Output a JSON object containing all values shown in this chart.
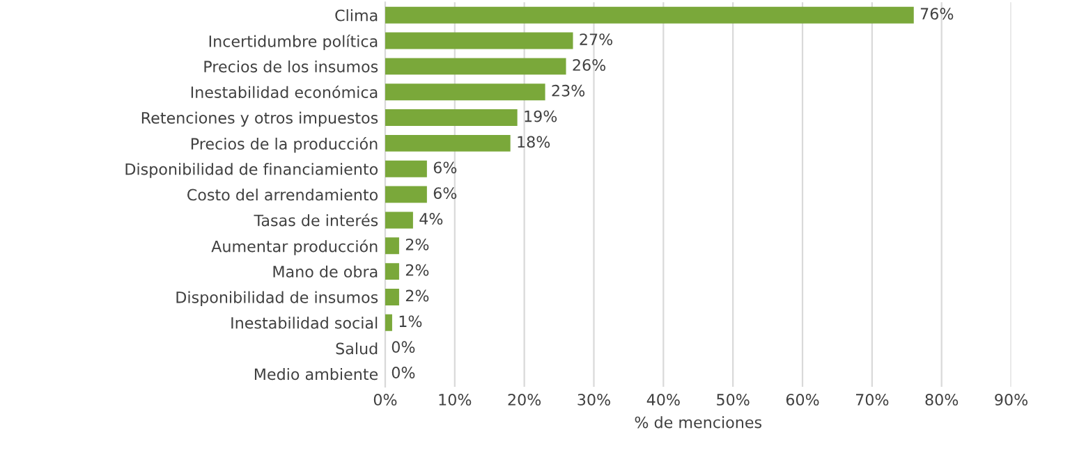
{
  "chart_data": {
    "type": "bar",
    "orientation": "horizontal",
    "xlabel": "% de menciones",
    "categories": [
      "Clima",
      "Incertidumbre política",
      "Precios de los insumos",
      "Inestabilidad económica",
      "Retenciones y otros impuestos",
      "Precios de la producción",
      "Disponibilidad de financiamiento",
      "Costo del arrendamiento",
      "Tasas de interés",
      "Aumentar producción",
      "Mano de obra",
      "Disponibilidad de insumos",
      "Inestabilidad social",
      "Salud",
      "Medio ambiente"
    ],
    "values": [
      76,
      27,
      26,
      23,
      19,
      18,
      6,
      6,
      4,
      2,
      2,
      2,
      1,
      0,
      0
    ],
    "value_labels": [
      "76%",
      "27%",
      "26%",
      "23%",
      "19%",
      "18%",
      "6%",
      "6%",
      "4%",
      "2%",
      "2%",
      "2%",
      "1%",
      "0%",
      "0%"
    ],
    "color": "#7aa83a",
    "xlim": [
      0,
      90
    ],
    "xticks": [
      {
        "value": 0,
        "label": "0%"
      },
      {
        "value": 10,
        "label": "10%"
      },
      {
        "value": 20,
        "label": "20%"
      },
      {
        "value": 30,
        "label": "30%"
      },
      {
        "value": 40,
        "label": "40%"
      },
      {
        "value": 50,
        "label": "50%"
      },
      {
        "value": 60,
        "label": "60%"
      },
      {
        "value": 70,
        "label": "70%"
      },
      {
        "value": 80,
        "label": "80%"
      },
      {
        "value": 90,
        "label": "90%"
      }
    ],
    "grid": "x",
    "legend": false
  }
}
